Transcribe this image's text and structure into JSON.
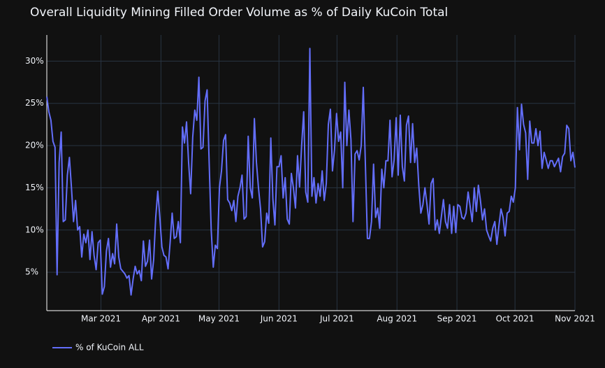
{
  "chart_data": {
    "type": "line",
    "title": "Overall Liquidity Mining Filled Order Volume as % of Daily KuCoin Total",
    "xlim": [
      "2021-02",
      "2021-11"
    ],
    "xticks": [
      {
        "value": "2021-03",
        "label": "Mar 2021"
      },
      {
        "value": "2021-04",
        "label": "Apr 2021"
      },
      {
        "value": "2021-05",
        "label": "May 2021"
      },
      {
        "value": "2021-06",
        "label": "Jun 2021"
      },
      {
        "value": "2021-07",
        "label": "Jul 2021"
      },
      {
        "value": "2021-08",
        "label": "Aug 2021"
      },
      {
        "value": "2021-09",
        "label": "Sep 2021"
      },
      {
        "value": "2021-10",
        "label": "Oct 2021"
      },
      {
        "value": "2021-11",
        "label": "Nov 2021"
      }
    ],
    "ylim": [
      0.45,
      33.1
    ],
    "yticks": [
      {
        "value": 5,
        "label": "5%"
      },
      {
        "value": 10,
        "label": "10%"
      },
      {
        "value": 15,
        "label": "15%"
      },
      {
        "value": 20,
        "label": "20%"
      },
      {
        "value": 25,
        "label": "25%"
      },
      {
        "value": 30,
        "label": "30%"
      }
    ],
    "grid": true,
    "legend": "bottom-left",
    "series": [
      {
        "name": "% of KuCoin ALL",
        "color": "#636efa",
        "values": [
          25.8,
          24,
          23,
          20.5,
          19.8,
          4.7,
          18,
          21.6,
          11,
          11.2,
          16.5,
          18.6,
          15,
          11,
          13.5,
          10,
          10.4,
          6.8,
          9.5,
          8.5,
          10,
          6.5,
          9.8,
          7,
          5.3,
          8.5,
          8.8,
          2.4,
          3.3,
          7.5,
          9,
          5.6,
          7.2,
          6,
          10.7,
          6.8,
          5.4,
          5.1,
          4.8,
          4.3,
          4.6,
          2.3,
          4.2,
          5.7,
          4.8,
          5.2,
          4,
          8.7,
          5.7,
          6.3,
          8.8,
          4.2,
          6.5,
          11.5,
          14.6,
          11.5,
          8,
          7,
          6.8,
          5.4,
          8.5,
          12,
          9,
          9.2,
          11,
          8.5,
          22.2,
          20.3,
          22.8,
          18,
          14.3,
          21,
          24.2,
          23,
          28.1,
          19.6,
          19.8,
          25.3,
          26.6,
          18,
          10,
          5.6,
          8.2,
          7.8,
          15,
          17,
          20.6,
          21.3,
          13.6,
          13.2,
          12.3,
          13.5,
          11,
          14,
          15,
          16.5,
          11.3,
          11.6,
          21.1,
          15,
          13.8,
          23.2,
          18,
          15,
          12.5,
          8,
          8.6,
          12,
          10.8,
          20.9,
          13.7,
          10.6,
          17.5,
          17.5,
          18.8,
          13.8,
          16.2,
          11.3,
          10.7,
          16.7,
          15,
          12.6,
          18.8,
          15.1,
          20,
          24,
          14.5,
          13.3,
          31.5,
          14,
          16.2,
          13.2,
          15.5,
          14,
          17,
          13.5,
          15.5,
          22.5,
          24.3,
          17,
          19.5,
          23.8,
          20.5,
          21.6,
          15,
          27.5,
          20,
          24.2,
          20.7,
          11,
          19,
          19.4,
          18.3,
          20,
          26.9,
          18,
          9,
          9,
          11,
          17.8,
          11.5,
          12.6,
          10.2,
          17.2,
          15,
          18.2,
          18.2,
          23,
          16.3,
          18.3,
          23.3,
          16.5,
          23.6,
          17.5,
          15.8,
          22.4,
          23.5,
          18,
          22.6,
          18,
          19.7,
          15.3,
          12,
          13,
          15,
          13,
          10.7,
          15.5,
          16.1,
          10,
          11.2,
          9.6,
          11.6,
          13.6,
          11,
          10.2,
          13,
          9.6,
          12.8,
          9.7,
          13,
          12.8,
          11.5,
          11.3,
          12,
          14.5,
          12.8,
          11,
          15,
          12.2,
          15.3,
          13.5,
          11.2,
          12.5,
          10,
          9.3,
          8.7,
          10.2,
          11,
          8.3,
          10.5,
          12.5,
          11.5,
          9.3,
          12,
          12.2,
          14,
          13.3,
          15,
          24.5,
          19.5,
          24.9,
          22.5,
          21.5,
          16,
          22.9,
          20.3,
          20.3,
          22,
          20,
          21.7,
          17.3,
          19.2,
          18.3,
          17.3,
          18.2,
          18.2,
          17.5,
          18,
          18.5,
          16.9,
          18.7,
          19.1,
          22.4,
          22,
          18.2,
          19.2,
          17.4
        ]
      }
    ]
  }
}
